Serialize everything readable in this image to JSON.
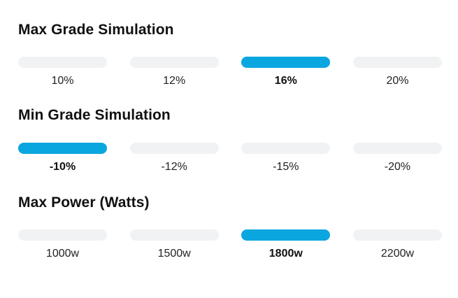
{
  "sections": [
    {
      "title": "Max Grade Simulation",
      "options": [
        {
          "label": "10%",
          "selected": false
        },
        {
          "label": "12%",
          "selected": false
        },
        {
          "label": "16%",
          "selected": true
        },
        {
          "label": "20%",
          "selected": false
        }
      ]
    },
    {
      "title": "Min Grade Simulation",
      "options": [
        {
          "label": "-10%",
          "selected": true
        },
        {
          "label": "-12%",
          "selected": false
        },
        {
          "label": "-15%",
          "selected": false
        },
        {
          "label": "-20%",
          "selected": false
        }
      ]
    },
    {
      "title": "Max Power (Watts)",
      "options": [
        {
          "label": "1000w",
          "selected": false
        },
        {
          "label": "1500w",
          "selected": false
        },
        {
          "label": "1800w",
          "selected": true
        },
        {
          "label": "2200w",
          "selected": false
        }
      ]
    }
  ],
  "colors": {
    "accent": "#0aa6df",
    "track": "#f1f2f4"
  }
}
